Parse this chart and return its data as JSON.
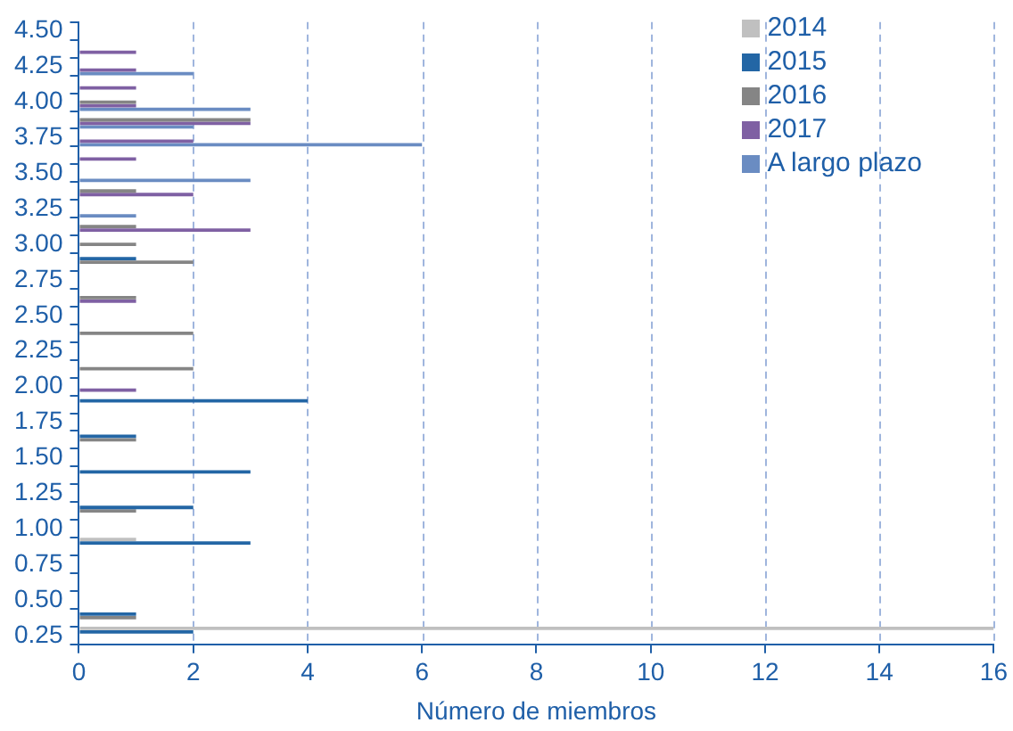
{
  "chart_data": {
    "type": "bar",
    "orientation": "horizontal",
    "xlabel": "Número de miembros",
    "categories": [
      "4.50",
      null,
      "4.25",
      null,
      "4.00",
      null,
      "3.75",
      null,
      "3.50",
      null,
      "3.25",
      null,
      "3.00",
      null,
      "2.75",
      null,
      "2.50",
      null,
      "2.25",
      null,
      "2.00",
      null,
      "1.75",
      null,
      "1.50",
      null,
      "1.25",
      null,
      "1.00",
      null,
      "0.75",
      null,
      "0.50",
      null,
      "0.25"
    ],
    "series": [
      {
        "name": "2014",
        "color": "#c0c0c0",
        "values": [
          null,
          null,
          null,
          null,
          null,
          null,
          null,
          null,
          null,
          null,
          null,
          null,
          null,
          null,
          null,
          null,
          null,
          null,
          null,
          null,
          null,
          null,
          null,
          null,
          null,
          null,
          null,
          null,
          null,
          1,
          null,
          null,
          null,
          null,
          16
        ]
      },
      {
        "name": "2015",
        "color": "#2366a5",
        "values": [
          null,
          null,
          null,
          null,
          null,
          null,
          null,
          null,
          null,
          null,
          null,
          null,
          null,
          1,
          null,
          null,
          null,
          null,
          null,
          null,
          null,
          4,
          null,
          1,
          null,
          3,
          null,
          2,
          null,
          3,
          null,
          null,
          null,
          1,
          2
        ]
      },
      {
        "name": "2016",
        "color": "#858585",
        "values": [
          null,
          null,
          null,
          null,
          1,
          3,
          null,
          null,
          null,
          1,
          null,
          1,
          1,
          2,
          null,
          1,
          null,
          2,
          null,
          2,
          null,
          null,
          null,
          1,
          null,
          null,
          null,
          1,
          null,
          null,
          null,
          null,
          null,
          1,
          null
        ]
      },
      {
        "name": "2017",
        "color": "#7f60a3",
        "values": [
          null,
          1,
          1,
          1,
          1,
          3,
          2,
          1,
          null,
          2,
          null,
          3,
          null,
          null,
          null,
          1,
          null,
          null,
          null,
          null,
          1,
          null,
          null,
          null,
          null,
          null,
          null,
          null,
          null,
          null,
          null,
          null,
          null,
          null,
          null
        ]
      },
      {
        "name": "A largo plazo",
        "color": "#6a8cc2",
        "values": [
          null,
          null,
          2,
          null,
          3,
          2,
          6,
          null,
          3,
          null,
          1,
          null,
          null,
          null,
          null,
          null,
          null,
          null,
          null,
          null,
          null,
          null,
          null,
          null,
          null,
          null,
          null,
          null,
          null,
          null,
          null,
          null,
          null,
          null,
          null
        ]
      }
    ],
    "xlim": [
      0,
      16
    ],
    "xticks": [
      0,
      2,
      4,
      6,
      8,
      10,
      12,
      14,
      16
    ],
    "grid": "x",
    "legend": "top right"
  }
}
